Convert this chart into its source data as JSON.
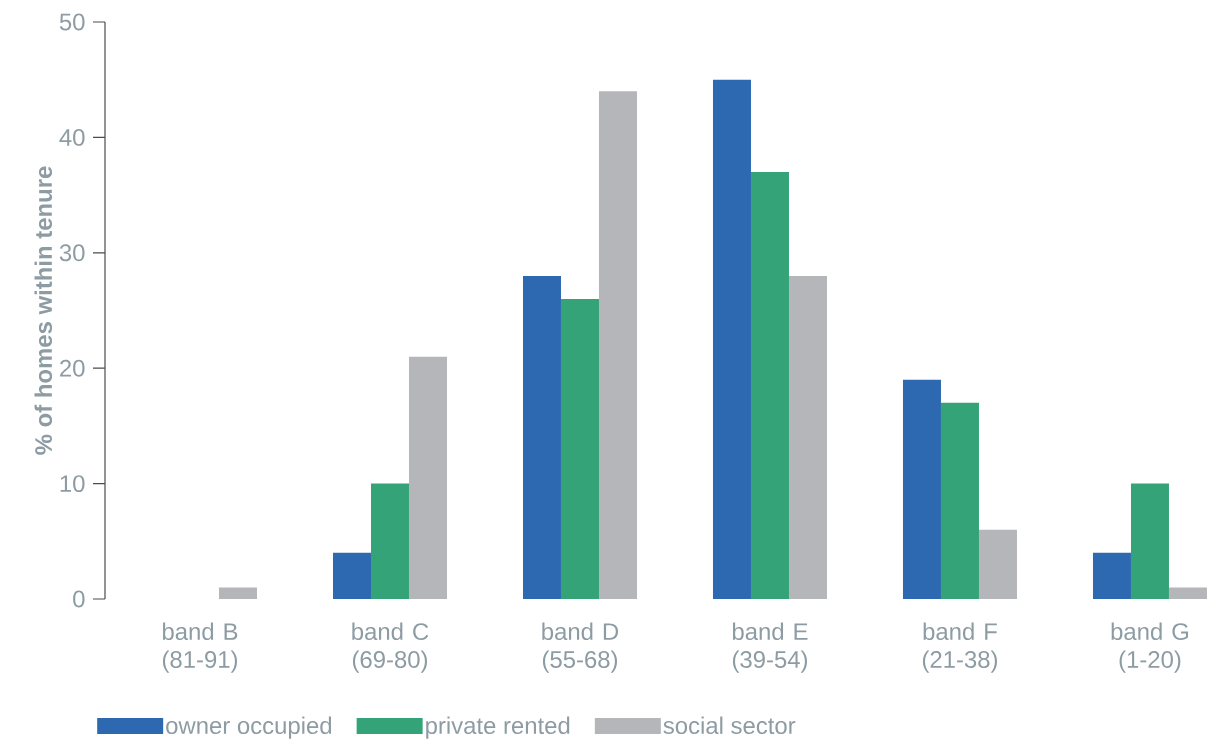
{
  "chart_data": {
    "type": "bar",
    "ylabel": "% of homes within tenure",
    "categories": [
      "band B (81-91)",
      "band C (69-80)",
      "band D (55-68)",
      "band E (39-54)",
      "band F (21-38)",
      "band G (1-20)"
    ],
    "series": [
      {
        "name": "owner occupied",
        "color": "#2d69b1",
        "values": [
          0,
          4,
          28,
          45,
          19,
          4
        ]
      },
      {
        "name": "private rented",
        "color": "#34a377",
        "values": [
          0,
          10,
          26,
          37,
          17,
          10
        ]
      },
      {
        "name": "social sector",
        "color": "#b5b6ba",
        "values": [
          1,
          21,
          44,
          28,
          6,
          1
        ]
      }
    ],
    "ylim": [
      0,
      50
    ],
    "yticks": [
      0,
      10,
      20,
      30,
      40,
      50
    ],
    "grid": false,
    "legend": "bottom left"
  }
}
